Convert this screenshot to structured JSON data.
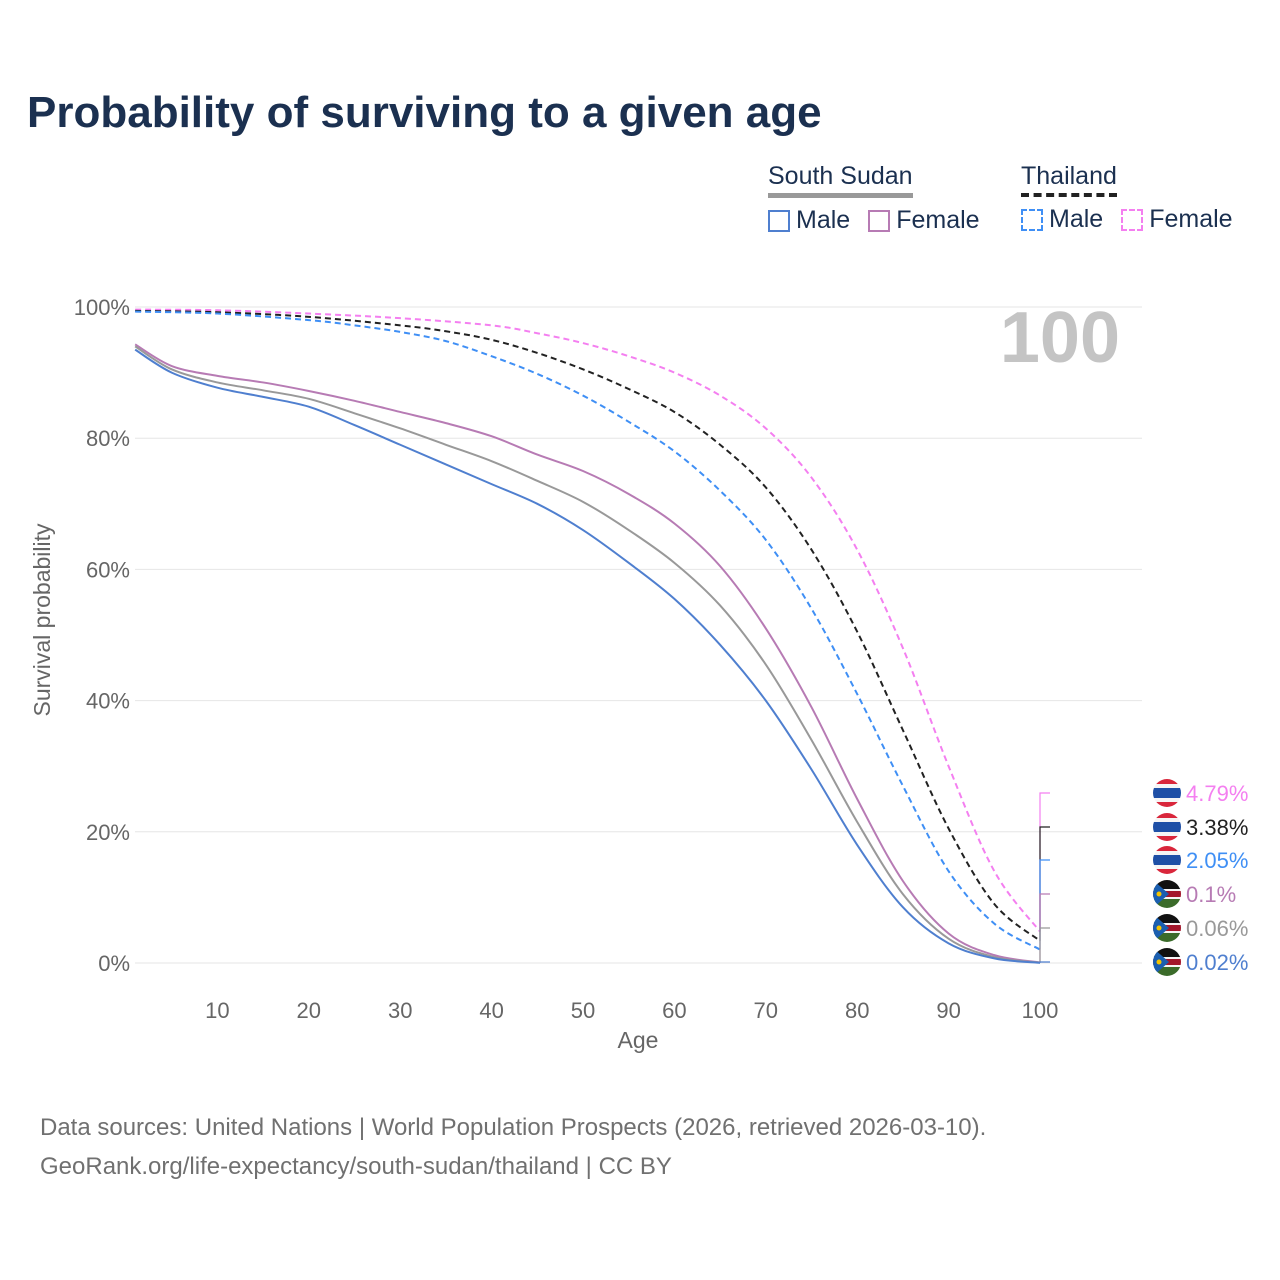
{
  "chart_data": {
    "type": "line",
    "title": "Probability of surviving to a given age",
    "xlabel": "Age",
    "ylabel": "Survival probability",
    "xlim": [
      0,
      100
    ],
    "ylim": [
      0,
      100
    ],
    "x_ticks": [
      "10",
      "20",
      "30",
      "40",
      "50",
      "60",
      "70",
      "80",
      "90",
      "100"
    ],
    "y_ticks": [
      "0%",
      "20%",
      "40%",
      "60%",
      "80%",
      "100%"
    ],
    "grid": true,
    "age_marker": "100",
    "legend": {
      "placement": "top-right",
      "groups": [
        {
          "country": "South Sudan",
          "items": [
            "Male",
            "Female"
          ]
        },
        {
          "country": "Thailand",
          "items": [
            "Male",
            "Female"
          ]
        }
      ]
    },
    "series": [
      {
        "name": "Thailand Female",
        "color": "#f47ff0",
        "dashed": true,
        "flag": "thailand",
        "end_label": "4.79%",
        "x": [
          1,
          10,
          20,
          30,
          40,
          45,
          50,
          55,
          60,
          65,
          70,
          75,
          80,
          85,
          90,
          95,
          100
        ],
        "values": [
          99.6,
          99.5,
          99,
          98.3,
          97.2,
          96,
          94.5,
          92.5,
          90,
          86.5,
          81.5,
          74,
          63,
          48,
          30,
          14,
          4.79
        ]
      },
      {
        "name": "Thailand Total",
        "color": "#222222",
        "dashed": true,
        "flag": "thailand",
        "end_label": "3.38%",
        "x": [
          1,
          10,
          20,
          30,
          35,
          40,
          45,
          50,
          55,
          60,
          65,
          70,
          75,
          80,
          85,
          90,
          95,
          100
        ],
        "values": [
          99.4,
          99.2,
          98.5,
          97.2,
          96.3,
          95,
          93,
          90.5,
          87.5,
          84,
          79,
          72.5,
          63,
          50.5,
          35.5,
          20.5,
          9,
          3.38
        ]
      },
      {
        "name": "Thailand Male",
        "color": "#3f8ff5",
        "dashed": true,
        "flag": "thailand",
        "end_label": "2.05%",
        "x": [
          1,
          10,
          20,
          25,
          30,
          35,
          40,
          45,
          50,
          55,
          60,
          65,
          70,
          75,
          80,
          85,
          90,
          95,
          100
        ],
        "values": [
          99.3,
          99,
          98,
          97.2,
          96.2,
          94.8,
          92.5,
          89.8,
          86.5,
          82.5,
          78,
          72,
          64.5,
          54,
          41,
          27,
          14,
          6,
          2.05
        ]
      },
      {
        "name": "South Sudan Female",
        "color": "#b77bb4",
        "dashed": false,
        "flag": "south-sudan",
        "end_label": "0.1%",
        "x": [
          1,
          5,
          10,
          15,
          20,
          25,
          30,
          35,
          40,
          45,
          50,
          55,
          60,
          65,
          70,
          75,
          80,
          85,
          90,
          95,
          100
        ],
        "values": [
          94.3,
          91,
          89.5,
          88.5,
          87.2,
          85.7,
          84,
          82.3,
          80.3,
          77.5,
          75,
          71.5,
          67,
          60.5,
          51,
          39,
          25,
          12.5,
          4.5,
          1.2,
          0.1
        ]
      },
      {
        "name": "South Sudan Total",
        "color": "#999999",
        "dashed": false,
        "flag": "south-sudan",
        "end_label": "0.06%",
        "x": [
          1,
          5,
          10,
          15,
          20,
          25,
          30,
          35,
          40,
          45,
          50,
          55,
          60,
          65,
          70,
          75,
          80,
          85,
          90,
          95,
          100
        ],
        "values": [
          94,
          90.5,
          88.5,
          87.3,
          86,
          83.8,
          81.5,
          79,
          76.5,
          73.5,
          70.3,
          66,
          61,
          54.5,
          45.5,
          34,
          21.5,
          10.5,
          3.7,
          0.9,
          0.06
        ]
      },
      {
        "name": "South Sudan Male",
        "color": "#4f7fcf",
        "dashed": false,
        "flag": "south-sudan",
        "end_label": "0.02%",
        "x": [
          1,
          5,
          10,
          15,
          20,
          25,
          30,
          35,
          40,
          45,
          50,
          55,
          60,
          65,
          70,
          75,
          80,
          85,
          90,
          95,
          100
        ],
        "values": [
          93.5,
          90,
          87.7,
          86.3,
          84.8,
          82,
          79,
          76,
          73,
          70,
          66,
          61,
          55.5,
          48.5,
          40,
          29.5,
          18,
          8.5,
          3,
          0.7,
          0.02
        ]
      }
    ]
  },
  "source": {
    "line1": "Data sources: United Nations | World Population Prospects (2026, retrieved 2026-03-10).",
    "line2": "GeoRank.org/life-expectancy/south-sudan/thailand | CC BY"
  }
}
